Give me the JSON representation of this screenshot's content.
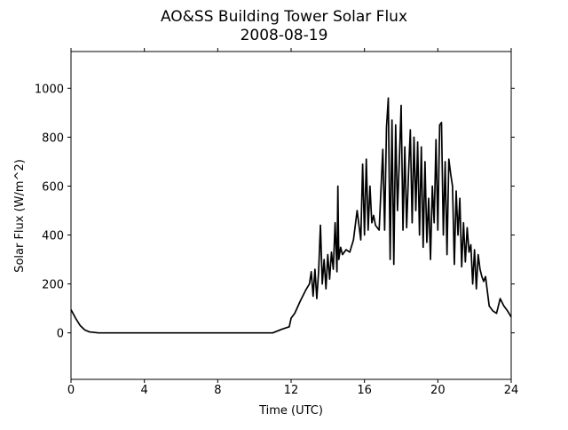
{
  "chart_data": {
    "type": "line",
    "title": "AO&SS Building Tower Solar Flux",
    "subtitle": "2008-08-19",
    "xlabel": "Time (UTC)",
    "ylabel": "Solar Flux (W/m^2)",
    "xlim": [
      0,
      24
    ],
    "xticks": [
      0,
      4,
      8,
      12,
      16,
      20,
      24
    ],
    "ylim": [
      -190,
      1150
    ],
    "yticks": [
      0,
      200,
      400,
      600,
      800,
      1000
    ],
    "series": [
      {
        "color": "#000000",
        "x": [
          0,
          0.25,
          0.5,
          0.75,
          1,
          1.5,
          2,
          4,
          6,
          8,
          10,
          11,
          11.5,
          11.9,
          12,
          12.2,
          12.5,
          12.8,
          13,
          13.1,
          13.2,
          13.3,
          13.4,
          13.5,
          13.6,
          13.7,
          13.8,
          13.9,
          14,
          14.1,
          14.2,
          14.3,
          14.4,
          14.5,
          14.55,
          14.6,
          14.7,
          14.8,
          15,
          15.2,
          15.4,
          15.6,
          15.8,
          15.9,
          16,
          16.1,
          16.2,
          16.3,
          16.4,
          16.5,
          16.6,
          16.8,
          17,
          17.1,
          17.2,
          17.3,
          17.4,
          17.5,
          17.6,
          17.7,
          17.8,
          17.9,
          18,
          18.1,
          18.2,
          18.3,
          18.4,
          18.5,
          18.6,
          18.7,
          18.8,
          18.9,
          19,
          19.1,
          19.2,
          19.3,
          19.4,
          19.5,
          19.6,
          19.7,
          19.8,
          19.9,
          20,
          20.1,
          20.2,
          20.3,
          20.4,
          20.5,
          20.6,
          20.7,
          20.8,
          20.9,
          21,
          21.1,
          21.2,
          21.3,
          21.4,
          21.5,
          21.6,
          21.7,
          21.8,
          21.9,
          22,
          22.1,
          22.2,
          22.3,
          22.4,
          22.5,
          22.6,
          22.8,
          23,
          23.2,
          23.4,
          23.6,
          23.8,
          24
        ],
        "values": [
          95,
          60,
          30,
          12,
          4,
          0,
          0,
          0,
          0,
          0,
          0,
          0,
          15,
          25,
          60,
          80,
          130,
          175,
          200,
          250,
          150,
          260,
          140,
          250,
          440,
          200,
          300,
          180,
          320,
          220,
          330,
          260,
          450,
          250,
          600,
          300,
          350,
          320,
          340,
          330,
          380,
          500,
          380,
          690,
          400,
          710,
          420,
          600,
          450,
          480,
          440,
          420,
          750,
          420,
          840,
          960,
          300,
          870,
          280,
          850,
          500,
          700,
          930,
          420,
          760,
          430,
          650,
          830,
          450,
          800,
          500,
          780,
          400,
          760,
          350,
          700,
          370,
          550,
          300,
          600,
          450,
          790,
          420,
          850,
          860,
          400,
          700,
          320,
          710,
          650,
          600,
          280,
          580,
          400,
          550,
          270,
          450,
          290,
          430,
          330,
          360,
          200,
          340,
          180,
          320,
          260,
          230,
          210,
          230,
          110,
          90,
          80,
          140,
          110,
          90,
          65
        ]
      }
    ]
  }
}
